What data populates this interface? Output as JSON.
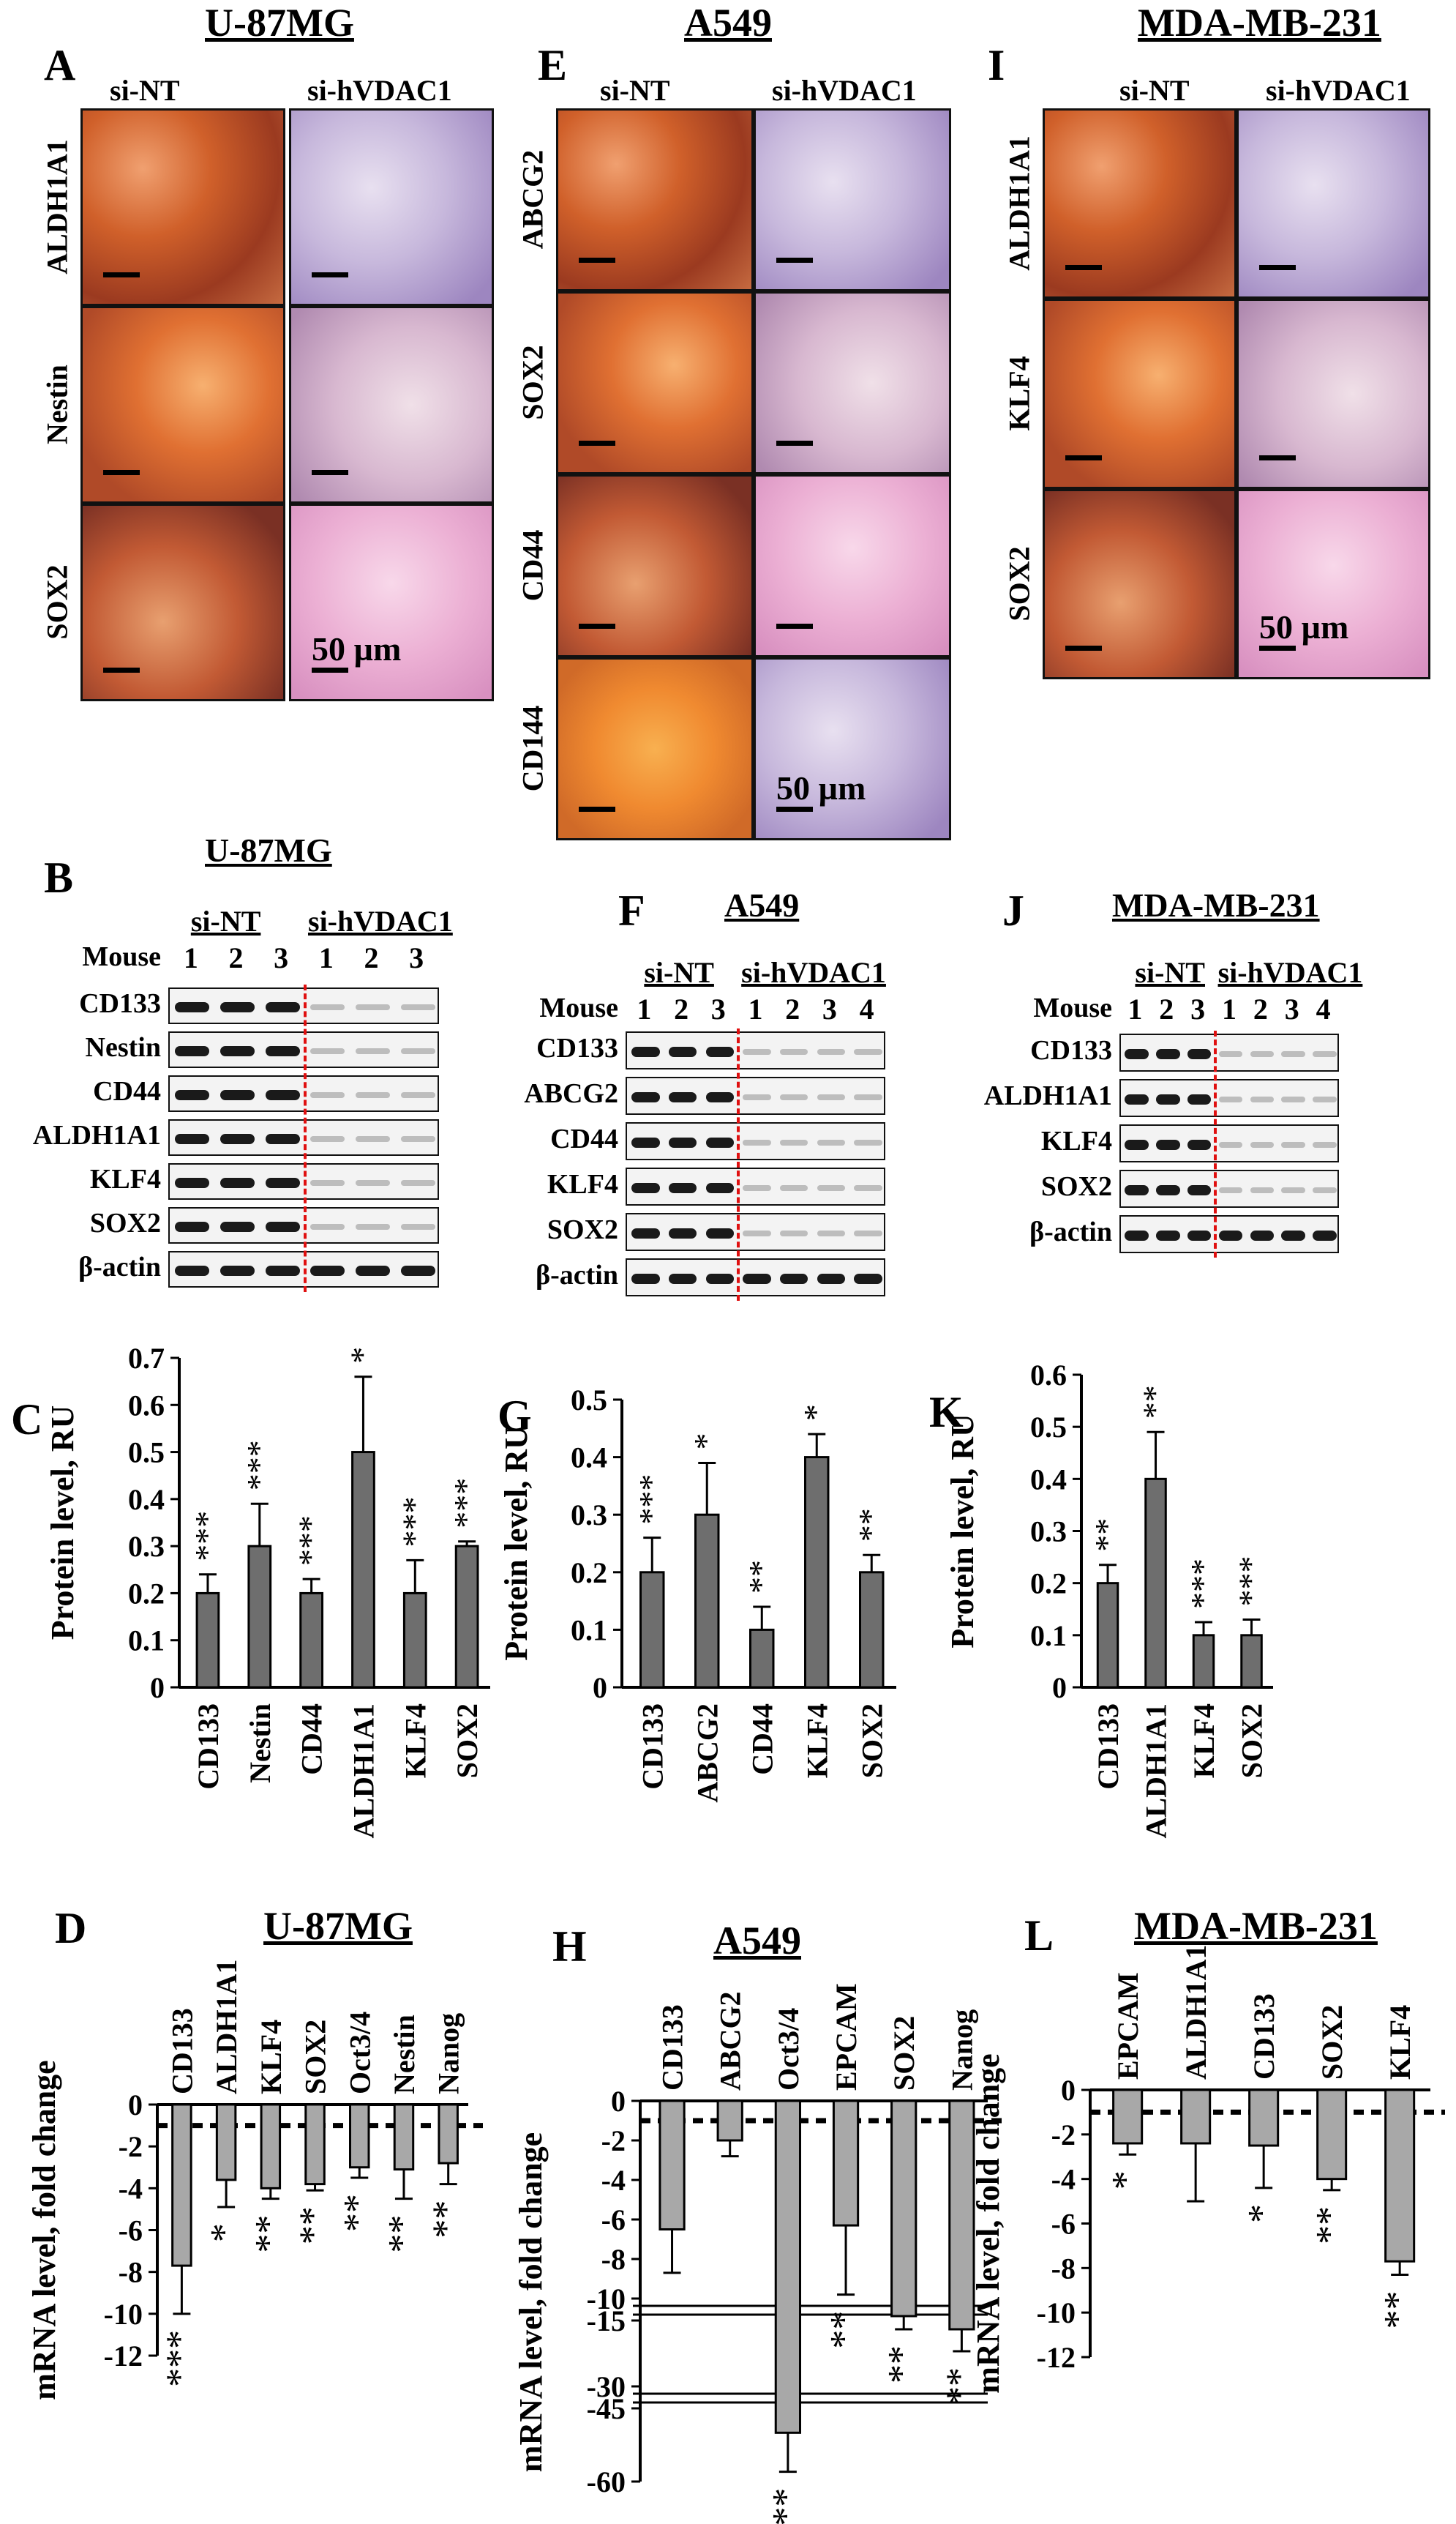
{
  "panels": {
    "A": {
      "letter": "A",
      "title": "U-87MG",
      "cols": [
        "si-NT",
        "si-hVDAC1"
      ],
      "rows": [
        "ALDH1A1",
        "Nestin",
        "SOX2"
      ],
      "scale": "50 µm"
    },
    "E": {
      "letter": "E",
      "title": "A549",
      "cols": [
        "si-NT",
        "si-hVDAC1"
      ],
      "rows": [
        "ABCG2",
        "SOX2",
        "CD44",
        "CD144"
      ],
      "scale": "50 µm"
    },
    "I": {
      "letter": "I",
      "title": "MDA-MB-231",
      "cols": [
        "si-NT",
        "si-hVDAC1"
      ],
      "rows": [
        "ALDH1A1",
        "KLF4",
        "SOX2"
      ],
      "scale": "50 µm"
    },
    "B": {
      "letter": "B",
      "title": "U-87MG",
      "groups": [
        "si-NT",
        "si-hVDAC1"
      ],
      "mouse_label": "Mouse",
      "lanes": [
        "1",
        "2",
        "3",
        "1",
        "2",
        "3"
      ],
      "rows": [
        "CD133",
        "Nestin",
        "CD44",
        "ALDH1A1",
        "KLF4",
        "SOX2",
        "β-actin"
      ]
    },
    "F": {
      "letter": "F",
      "title": "A549",
      "groups": [
        "si-NT",
        "si-hVDAC1"
      ],
      "mouse_label": "Mouse",
      "lanes": [
        "1",
        "2",
        "3",
        "1",
        "2",
        "3",
        "4"
      ],
      "rows": [
        "CD133",
        "ABCG2",
        "CD44",
        "KLF4",
        "SOX2",
        "β-actin"
      ]
    },
    "J": {
      "letter": "J",
      "title": "MDA-MB-231",
      "groups": [
        "si-NT",
        "si-hVDAC1"
      ],
      "mouse_label": "Mouse",
      "lanes": [
        "1",
        "2",
        "3",
        "1",
        "2",
        "3",
        "4"
      ],
      "rows": [
        "CD133",
        "ALDH1A1",
        "KLF4",
        "SOX2",
        "β-actin"
      ]
    },
    "C": {
      "letter": "C"
    },
    "G": {
      "letter": "G"
    },
    "K": {
      "letter": "K"
    },
    "D": {
      "letter": "D",
      "title": "U-87MG"
    },
    "H": {
      "letter": "H",
      "title": "A549"
    },
    "L": {
      "letter": "L",
      "title": "MDA-MB-231"
    }
  },
  "chart_data": [
    {
      "panel": "C",
      "type": "bar",
      "ylabel": "Protein level, RU",
      "ylim": [
        0,
        0.7
      ],
      "yticks": [
        "0",
        "0.1",
        "0.2",
        "0.3",
        "0.4",
        "0.5",
        "0.6",
        "0.7"
      ],
      "categories": [
        "CD133",
        "Nestin",
        "CD44",
        "ALDH1A1",
        "KLF4",
        "SOX2"
      ],
      "values": [
        0.2,
        0.3,
        0.2,
        0.5,
        0.2,
        0.3
      ],
      "errors": [
        0.04,
        0.09,
        0.03,
        0.16,
        0.07,
        0.01
      ],
      "significance": [
        "***",
        "***",
        "***",
        "*",
        "***",
        "***"
      ]
    },
    {
      "panel": "G",
      "type": "bar",
      "ylabel": "Protein level, RU",
      "ylim": [
        0,
        0.5
      ],
      "yticks": [
        "0",
        "0.1",
        "0.2",
        "0.3",
        "0.4",
        "0.5"
      ],
      "categories": [
        "CD133",
        "ABCG2",
        "CD44",
        "KLF4",
        "SOX2"
      ],
      "values": [
        0.2,
        0.3,
        0.1,
        0.4,
        0.2
      ],
      "errors": [
        0.06,
        0.09,
        0.04,
        0.04,
        0.03
      ],
      "significance": [
        "***",
        "*",
        "**",
        "*",
        "**"
      ]
    },
    {
      "panel": "K",
      "type": "bar",
      "ylabel": "Protein level, RU",
      "ylim": [
        0,
        0.6
      ],
      "yticks": [
        "0",
        "0.1",
        "0.2",
        "0.3",
        "0.4",
        "0.5",
        "0.6"
      ],
      "categories": [
        "CD133",
        "ALDH1A1",
        "KLF4",
        "SOX2"
      ],
      "values": [
        0.2,
        0.4,
        0.1,
        0.1
      ],
      "errors": [
        0.035,
        0.09,
        0.025,
        0.03
      ],
      "significance": [
        "**",
        "**",
        "***",
        "***"
      ]
    },
    {
      "panel": "D",
      "type": "bar",
      "ylabel": "mRNA level, fold change",
      "ylim": [
        -12,
        0
      ],
      "yticks": [
        "0",
        "-2",
        "-4",
        "-6",
        "-8",
        "-10",
        "-12"
      ],
      "categories": [
        "CD133",
        "ALDH1A1",
        "KLF4",
        "SOX2",
        "Oct3/4",
        "Nestin",
        "Nanog"
      ],
      "values": [
        -7.7,
        -3.6,
        -4.0,
        -3.8,
        -3.0,
        -3.1,
        -2.8
      ],
      "errors": [
        2.3,
        1.3,
        0.5,
        0.3,
        0.5,
        1.4,
        1.0
      ],
      "significance": [
        "***",
        "*",
        "**",
        "**",
        "**",
        "**",
        "**"
      ]
    },
    {
      "panel": "H",
      "type": "bar",
      "ylabel": "mRNA level, fold change",
      "yticks": [
        "0",
        "-2",
        "-4",
        "-6",
        "-8",
        "-10",
        "-15",
        "-30",
        "-45",
        "-60"
      ],
      "axis_break": true,
      "categories": [
        "CD133",
        "ABCG2",
        "Oct3/4",
        "EPCAM",
        "SOX2",
        "Nanog"
      ],
      "values": [
        -6.5,
        -2.0,
        -50,
        -6.3,
        -14,
        -17
      ],
      "errors": [
        2.2,
        0.8,
        8,
        3.5,
        3,
        5
      ],
      "significance": [
        "",
        "",
        "***",
        "**",
        "**",
        "**"
      ]
    },
    {
      "panel": "L",
      "type": "bar",
      "ylabel": "mRNA level, fold change",
      "ylim": [
        -12,
        0
      ],
      "yticks": [
        "0",
        "-2",
        "-4",
        "-6",
        "-8",
        "-10",
        "-12"
      ],
      "categories": [
        "EPCAM",
        "ALDH1A1",
        "CD133",
        "SOX2",
        "KLF4"
      ],
      "values": [
        -2.4,
        -2.4,
        -2.5,
        -4.0,
        -7.7
      ],
      "errors": [
        0.5,
        2.6,
        1.9,
        0.5,
        0.6
      ],
      "significance": [
        "*",
        "",
        "*",
        "**",
        "**"
      ]
    }
  ]
}
